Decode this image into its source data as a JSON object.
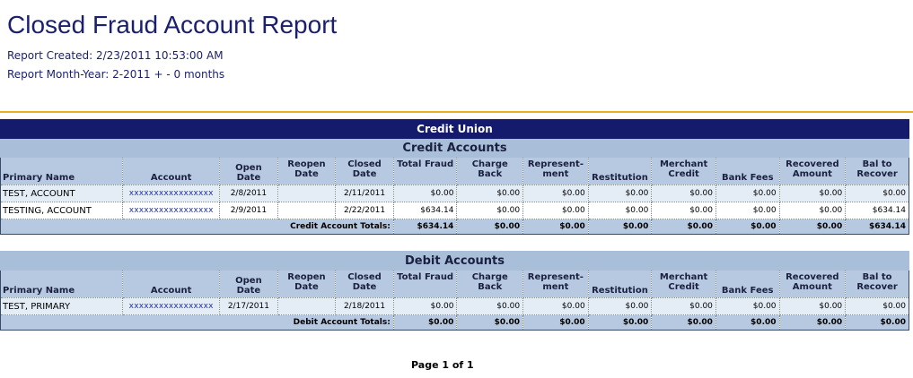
{
  "report": {
    "title": "Closed Fraud Account Report",
    "created": "Report Created: 2/23/2011 10:53:00 AM",
    "month_year": "Report Month-Year: 2-2011 + - 0 months",
    "page_label": "Page 1 of  1"
  },
  "colors": {
    "title": "#1a1f6e",
    "band_dark": "#141a6c",
    "band_light": "#a9bfd9",
    "rule": "#e8b020"
  },
  "credit_union_title": "Credit Union",
  "columns": [
    "Primary Name",
    "Account",
    "Open Date",
    "Reopen Date",
    "Closed Date",
    "Total Fraud",
    "Charge Back",
    "Represent-ment",
    "Restitution",
    "Merchant Credit",
    "Bank Fees",
    "Recovered Amount",
    "Bal to Recover"
  ],
  "credit": {
    "title": "Credit Accounts",
    "rows": [
      [
        "TEST, ACCOUNT",
        "xxxxxxxxxxxxxxxxx",
        "2/8/2011",
        "",
        "2/11/2011",
        "$0.00",
        "$0.00",
        "$0.00",
        "$0.00",
        "$0.00",
        "$0.00",
        "$0.00",
        "$0.00"
      ],
      [
        "TESTING, ACCOUNT",
        "xxxxxxxxxxxxxxxxx",
        "2/9/2011",
        "",
        "2/22/2011",
        "$634.14",
        "$0.00",
        "$0.00",
        "$0.00",
        "$0.00",
        "$0.00",
        "$0.00",
        "$634.14"
      ]
    ],
    "totals_label": "Credit Account Totals:",
    "totals": [
      "$634.14",
      "$0.00",
      "$0.00",
      "$0.00",
      "$0.00",
      "$0.00",
      "$0.00",
      "$634.14"
    ]
  },
  "debit": {
    "title": "Debit Accounts",
    "rows": [
      [
        "TEST, PRIMARY",
        "xxxxxxxxxxxxxxxxx",
        "2/17/2011",
        "",
        "2/18/2011",
        "$0.00",
        "$0.00",
        "$0.00",
        "$0.00",
        "$0.00",
        "$0.00",
        "$0.00",
        "$0.00"
      ]
    ],
    "totals_label": "Debit Account Totals:",
    "totals": [
      "$0.00",
      "$0.00",
      "$0.00",
      "$0.00",
      "$0.00",
      "$0.00",
      "$0.00",
      "$0.00"
    ]
  }
}
